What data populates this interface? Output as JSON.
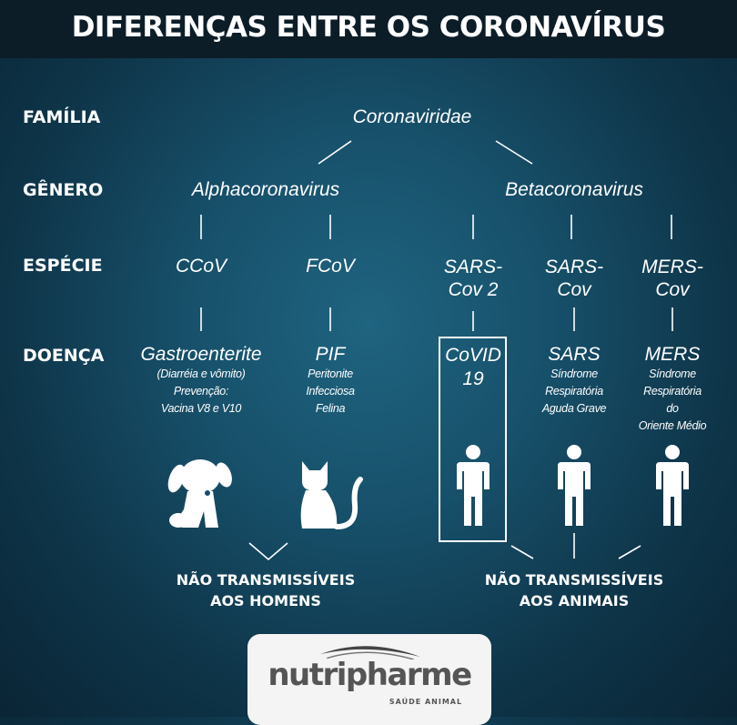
{
  "title": "DIFERENÇAS ENTRE OS CORONAVÍRUS",
  "row_labels": {
    "familia": "FAMÍLIA",
    "genero": "GÊNERO",
    "especie": "ESPÉCIE",
    "doenca": "DOENÇA"
  },
  "family": "Coronaviridae",
  "genera": {
    "alpha": "Alphacoronavirus",
    "beta": "Betacoronavirus"
  },
  "species": [
    {
      "line1": "CCoV",
      "line2": ""
    },
    {
      "line1": "FCoV",
      "line2": ""
    },
    {
      "line1": "SARS-",
      "line2": "Cov 2"
    },
    {
      "line1": "SARS-",
      "line2": "Cov"
    },
    {
      "line1": "MERS-",
      "line2": "Cov"
    }
  ],
  "diseases": [
    {
      "name": "Gastroenterite",
      "details": [
        "(Diarréia e vômito)",
        "Prevenção:",
        "Vacina V8 e V10"
      ],
      "icon": "dog-icon"
    },
    {
      "name": "PIF",
      "details": [
        "Peritonite",
        "Infecciosa",
        "Felina"
      ],
      "icon": "cat-icon"
    },
    {
      "name": "CoVID",
      "name2": "19",
      "details": [],
      "icon": "person-icon",
      "highlighted": true
    },
    {
      "name": "SARS",
      "details": [
        "Síndrome",
        "Respiratória",
        "Aguda Grave"
      ],
      "icon": "person-icon"
    },
    {
      "name": "MERS",
      "details": [
        "Síndrome",
        "Respiratória",
        "do",
        "Oriente Médio"
      ],
      "icon": "person-icon"
    }
  ],
  "conclusions": {
    "animals": {
      "line1": "NÃO TRANSMISSÍVEIS",
      "line2": "AOS HOMENS"
    },
    "humans": {
      "line1": "NÃO TRANSMISSÍVEIS",
      "line2": "AOS ANIMAIS"
    }
  },
  "logo": {
    "name": "nutripharme",
    "tagline": "SAÚDE ANIMAL"
  },
  "colors": {
    "background": "#17506a",
    "title_bar": "#0c1d28",
    "text": "#ffffff"
  }
}
